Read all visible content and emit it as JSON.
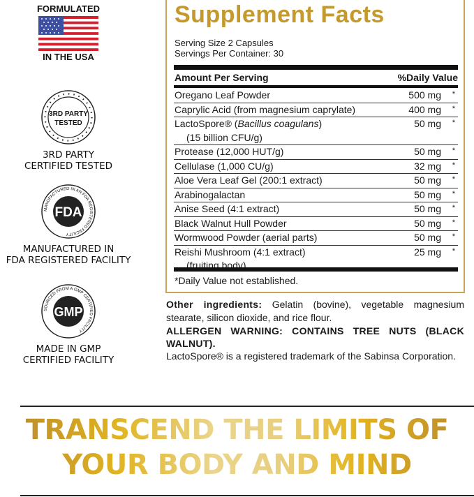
{
  "badges": [
    {
      "top": "FORMULATED",
      "bottom": "IN THE USA",
      "icon": "us-flag-icon"
    },
    {
      "seal_lines": [
        "3RD PARTY",
        "TESTED"
      ],
      "label_lines": [
        "3RD PARTY",
        "CERTIFIED TESTED"
      ],
      "icon": "third-party-tested-seal-icon"
    },
    {
      "seal_ring": "MANUFACTURED IN AN FDA REGISTERED FACILITY",
      "seal_center": "FDA",
      "label_lines": [
        "MANUFACTURED IN",
        "FDA REGISTERED FACILITY"
      ],
      "icon": "fda-seal-icon"
    },
    {
      "seal_ring": "SOURCED FROM A GMP CERTIFIED FACILITY",
      "seal_center": "GMP",
      "label_lines": [
        "MADE IN GMP",
        "CERTIFIED FACILITY"
      ],
      "icon": "gmp-seal-icon"
    }
  ],
  "facts": {
    "title": "Supplement Facts",
    "serving_size": "Serving Size 2 Capsules",
    "servings_per_container": "Servings Per Container: 30",
    "header_amount": "Amount Per Serving",
    "header_dv": "%Daily Value",
    "rows": [
      {
        "name": "Oregano Leaf Powder",
        "amount": "500 mg",
        "dv": "*"
      },
      {
        "name": "Caprylic Acid (from magnesium caprylate)",
        "amount": "400 mg",
        "dv": "*"
      },
      {
        "name": "LactoSpore® (",
        "name_italic": "Bacillus coagulans",
        "name_end": ")",
        "sub": "(15 billion CFU/g)",
        "amount": "50 mg",
        "dv": "*"
      },
      {
        "name": "Protease (12,000 HUT/g)",
        "amount": "50 mg",
        "dv": "*"
      },
      {
        "name": "Cellulase (1,000 CU/g)",
        "amount": "32 mg",
        "dv": "*"
      },
      {
        "name": "Aloe Vera Leaf Gel (200:1 extract)",
        "amount": "50 mg",
        "dv": "*"
      },
      {
        "name": "Arabinogalactan",
        "amount": "50 mg",
        "dv": "*"
      },
      {
        "name": "Anise Seed (4:1 extract)",
        "amount": "50 mg",
        "dv": "*"
      },
      {
        "name": "Black Walnut Hull Powder",
        "amount": "50 mg",
        "dv": "*"
      },
      {
        "name": "Wormwood Powder (aerial parts)",
        "amount": "50 mg",
        "dv": "*"
      },
      {
        "name": "Reishi Mushroom (4:1 extract)",
        "sub": "(fruiting body)",
        "amount": "25 mg",
        "dv": "*"
      }
    ],
    "footnote": "*Daily Value not established."
  },
  "other": {
    "label": "Other ingredients:",
    "text": " Gelatin (bovine), vegetable magnesium stearate, silicon dioxide, and rice flour.",
    "allergen": "ALLERGEN WARNING: CONTAINS TREE NUTS (BLACK WALNUT).",
    "trademark": "LactoSpore® is a registered trademark of the Sabinsa Corporation."
  },
  "slogan": {
    "line1": "TRANSCEND THE LIMITS OF",
    "line2": "YOUR BODY AND MIND"
  },
  "colors": {
    "gold": "#c49a2e",
    "border": "#c9a655",
    "flag_red": "#d3202e",
    "flag_blue": "#3c4fa0"
  }
}
